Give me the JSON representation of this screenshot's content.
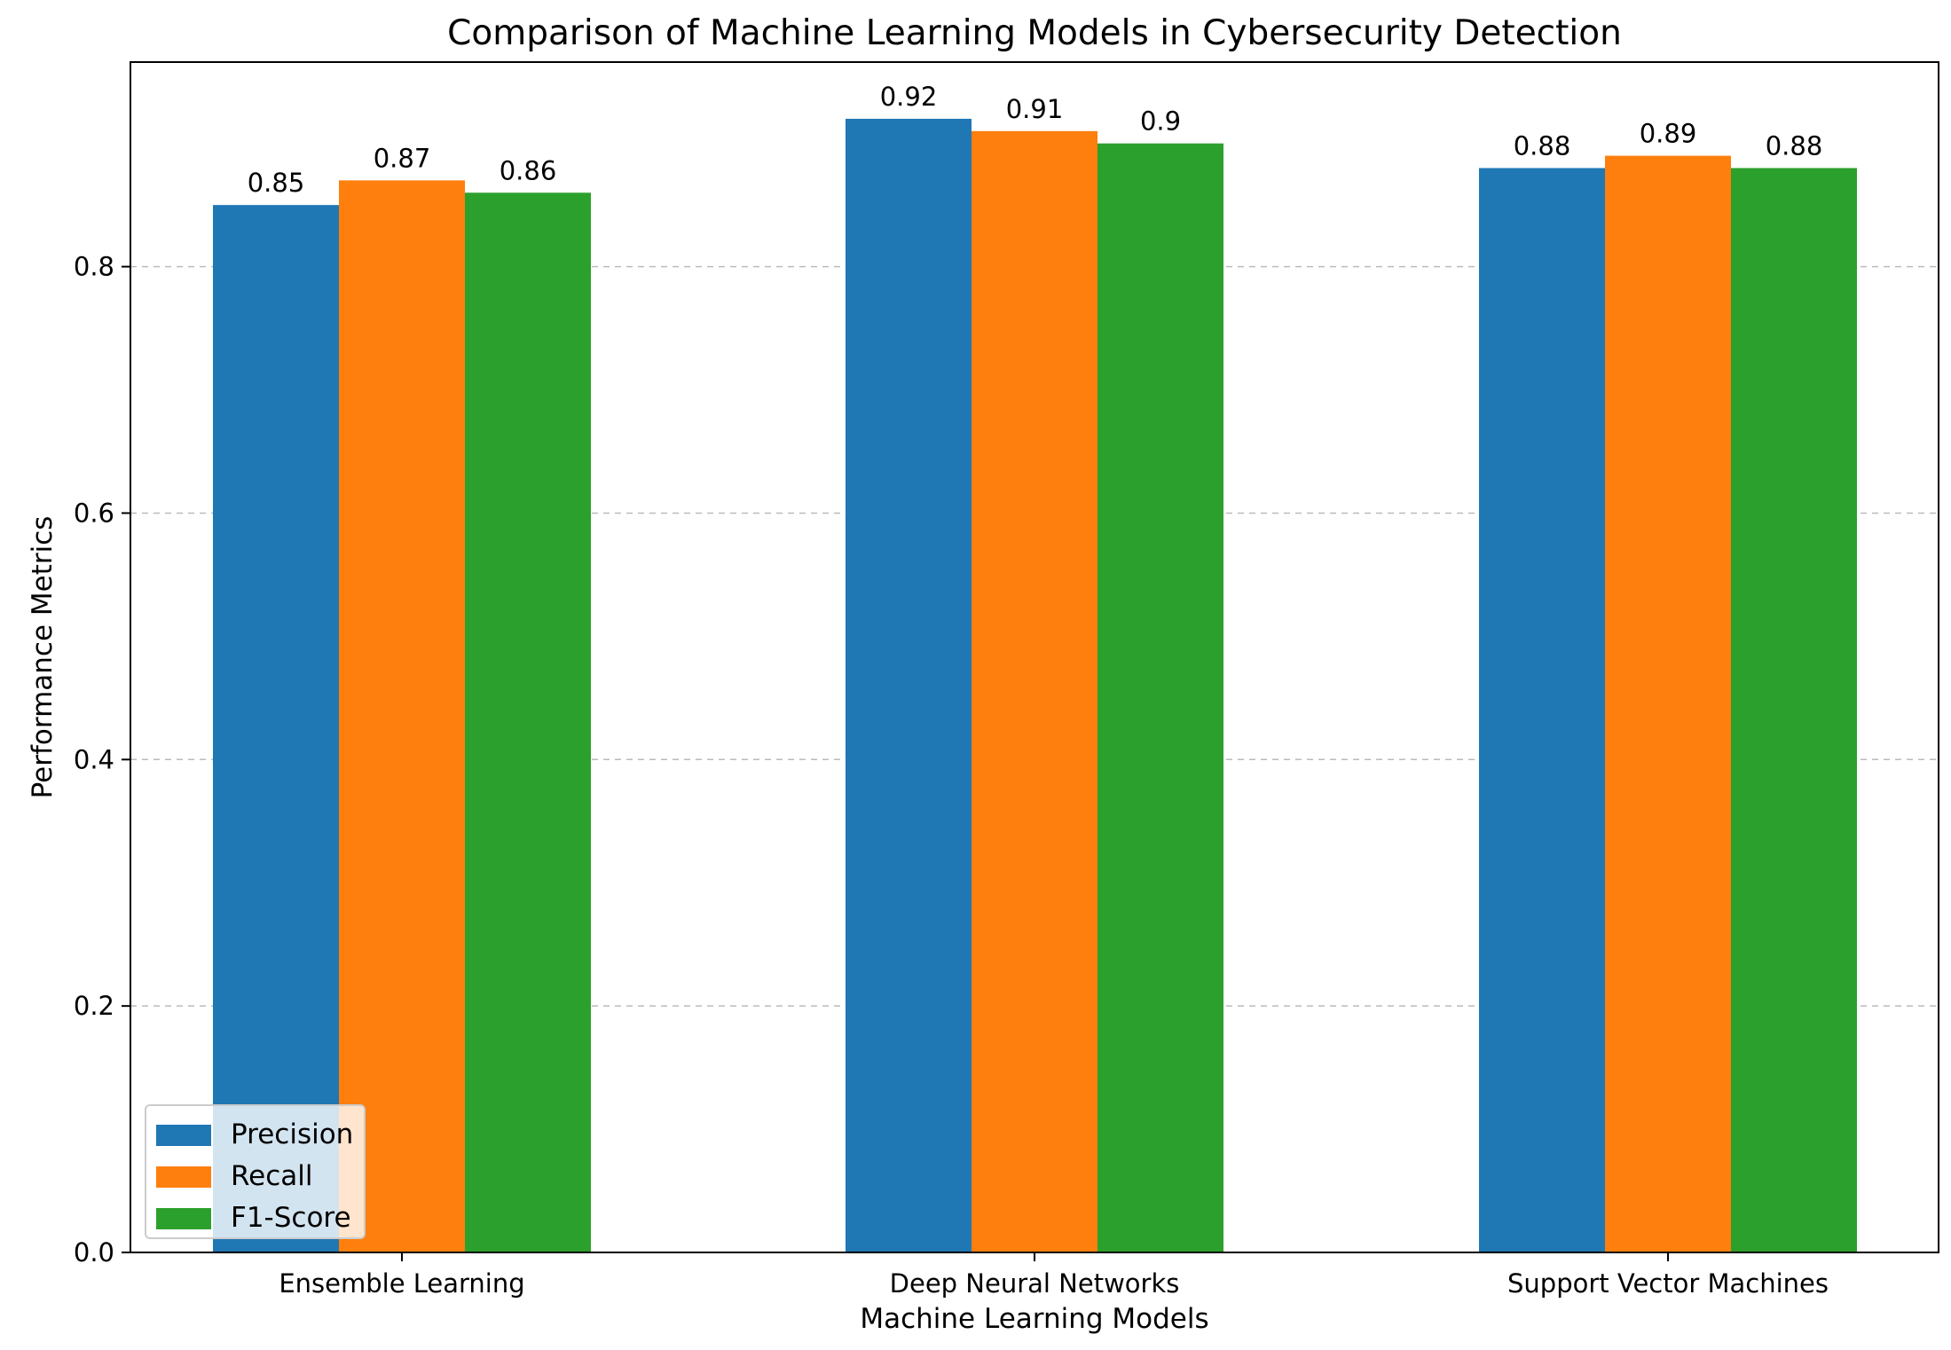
{
  "chart_data": {
    "type": "bar",
    "title": "Comparison of Machine Learning Models in Cybersecurity Detection",
    "xlabel": "Machine Learning Models",
    "ylabel": "Performance Metrics",
    "categories": [
      "Ensemble Learning",
      "Deep Neural Networks",
      "Support Vector Machines"
    ],
    "series": [
      {
        "name": "Precision",
        "color": "#1f77b4",
        "values": [
          0.85,
          0.92,
          0.88
        ],
        "labels": [
          "0.85",
          "0.92",
          "0.88"
        ]
      },
      {
        "name": "Recall",
        "color": "#ff7f0e",
        "values": [
          0.87,
          0.91,
          0.89
        ],
        "labels": [
          "0.87",
          "0.91",
          "0.89"
        ]
      },
      {
        "name": "F1-Score",
        "color": "#2ca02c",
        "values": [
          0.86,
          0.9,
          0.88
        ],
        "labels": [
          "0.86",
          "0.9",
          "0.88"
        ]
      }
    ],
    "ylim": [
      0,
      0.966
    ],
    "yticks": [
      0.0,
      0.2,
      0.4,
      0.6,
      0.8
    ],
    "ytick_labels": [
      "0.0",
      "0.2",
      "0.4",
      "0.6",
      "0.8"
    ],
    "grid": "y-dashed",
    "legend_position": "lower-left"
  }
}
